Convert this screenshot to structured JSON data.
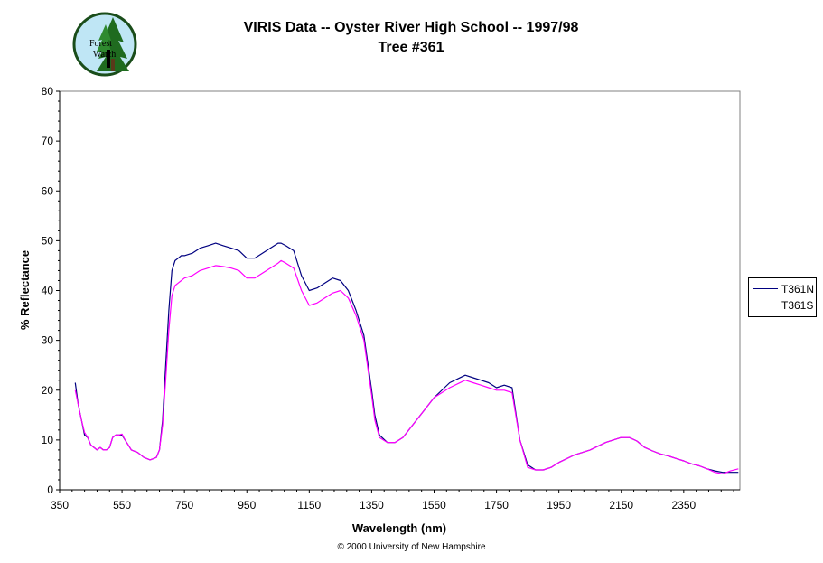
{
  "header": {
    "title": "VIRIS Data -- Oyster River High School -- 1997/98",
    "subtitle": "Tree #361",
    "logo_text_1": "Forest",
    "logo_text_2": "Watch"
  },
  "footer": {
    "copyright": "© 2000 University of New Hampshire"
  },
  "chart_data": {
    "type": "line",
    "xlabel": "Wavelength (nm)",
    "ylabel": "% Reflectance",
    "xlim": [
      350,
      2530
    ],
    "ylim": [
      0,
      80
    ],
    "xticks": [
      350,
      550,
      750,
      950,
      1150,
      1350,
      1550,
      1750,
      1950,
      2150,
      2350
    ],
    "yticks": [
      0,
      10,
      20,
      30,
      40,
      50,
      60,
      70,
      80
    ],
    "grid": false,
    "legend_position": "right",
    "series": [
      {
        "name": "T361N",
        "color": "#000080",
        "x": [
          400,
          410,
          420,
          430,
          440,
          450,
          460,
          470,
          480,
          490,
          500,
          510,
          520,
          530,
          540,
          550,
          560,
          570,
          580,
          600,
          620,
          640,
          660,
          670,
          680,
          690,
          700,
          710,
          720,
          730,
          740,
          750,
          775,
          800,
          825,
          850,
          875,
          900,
          925,
          950,
          975,
          1000,
          1025,
          1050,
          1060,
          1075,
          1100,
          1125,
          1150,
          1175,
          1200,
          1225,
          1250,
          1275,
          1300,
          1325,
          1350,
          1360,
          1375,
          1400,
          1425,
          1450,
          1475,
          1500,
          1550,
          1600,
          1650,
          1675,
          1700,
          1725,
          1750,
          1775,
          1800,
          1825,
          1850,
          1875,
          1900,
          1925,
          1950,
          2000,
          2050,
          2100,
          2150,
          2175,
          2200,
          2225,
          2250,
          2275,
          2300,
          2325,
          2350,
          2375,
          2400,
          2425,
          2450,
          2475,
          2500,
          2525
        ],
        "values": [
          21.5,
          17,
          14,
          11,
          10.5,
          9,
          8.5,
          8,
          8.5,
          8,
          8,
          8.5,
          10.5,
          11,
          11,
          11,
          10,
          9,
          8,
          7.5,
          6.5,
          6,
          6.5,
          8,
          14,
          25,
          36,
          44,
          46,
          46.5,
          47,
          47,
          47.5,
          48.5,
          49,
          49.5,
          49,
          48.5,
          48,
          46.5,
          46.5,
          47.5,
          48.5,
          49.5,
          49.5,
          49,
          48,
          43,
          40,
          40.5,
          41.5,
          42.5,
          42,
          40,
          36,
          31,
          20,
          15,
          11,
          9.5,
          9.5,
          10.5,
          12.5,
          14.5,
          18.5,
          21.5,
          23,
          22.5,
          22,
          21.5,
          20.5,
          21,
          20.5,
          10,
          5,
          4,
          4,
          4.5,
          5.5,
          7,
          8,
          9.5,
          10.5,
          10.5,
          9.8,
          8.5,
          7.8,
          7.2,
          6.8,
          6.3,
          5.8,
          5.2,
          4.8,
          4.2,
          3.8,
          3.5,
          3.5,
          3.5
        ]
      },
      {
        "name": "T361S",
        "color": "#ff00ff",
        "x": [
          400,
          410,
          420,
          430,
          440,
          450,
          460,
          470,
          480,
          490,
          500,
          510,
          520,
          530,
          540,
          550,
          560,
          570,
          580,
          600,
          620,
          640,
          660,
          670,
          680,
          690,
          700,
          710,
          720,
          730,
          740,
          750,
          775,
          800,
          825,
          850,
          875,
          900,
          925,
          950,
          975,
          1000,
          1025,
          1050,
          1060,
          1075,
          1100,
          1125,
          1150,
          1175,
          1200,
          1225,
          1250,
          1275,
          1300,
          1325,
          1350,
          1360,
          1375,
          1400,
          1425,
          1450,
          1475,
          1500,
          1550,
          1600,
          1650,
          1675,
          1700,
          1725,
          1750,
          1775,
          1800,
          1825,
          1850,
          1875,
          1900,
          1925,
          1950,
          2000,
          2050,
          2100,
          2150,
          2175,
          2200,
          2225,
          2250,
          2275,
          2300,
          2325,
          2350,
          2375,
          2400,
          2425,
          2450,
          2475,
          2500,
          2525
        ],
        "values": [
          20,
          17,
          14,
          11.5,
          10.5,
          9,
          8.5,
          8,
          8.5,
          8,
          8,
          8.5,
          10.5,
          11,
          11,
          11.2,
          10,
          9,
          8,
          7.5,
          6.5,
          6,
          6.5,
          8,
          13,
          22,
          32,
          39,
          41,
          41.5,
          42,
          42.5,
          43,
          44,
          44.5,
          45,
          44.8,
          44.5,
          44,
          42.5,
          42.5,
          43.5,
          44.5,
          45.5,
          46,
          45.5,
          44.5,
          40,
          37,
          37.5,
          38.5,
          39.5,
          40,
          38.5,
          35,
          30,
          19,
          14,
          10.5,
          9.5,
          9.5,
          10.5,
          12.5,
          14.5,
          18.5,
          20.5,
          22,
          21.5,
          21,
          20.5,
          20,
          20,
          19.5,
          10,
          4.5,
          4,
          4,
          4.5,
          5.5,
          7,
          8,
          9.5,
          10.5,
          10.5,
          9.8,
          8.5,
          7.8,
          7.2,
          6.8,
          6.3,
          5.8,
          5.2,
          4.8,
          4.2,
          3.5,
          3.2,
          3.8,
          4.2
        ]
      }
    ]
  }
}
